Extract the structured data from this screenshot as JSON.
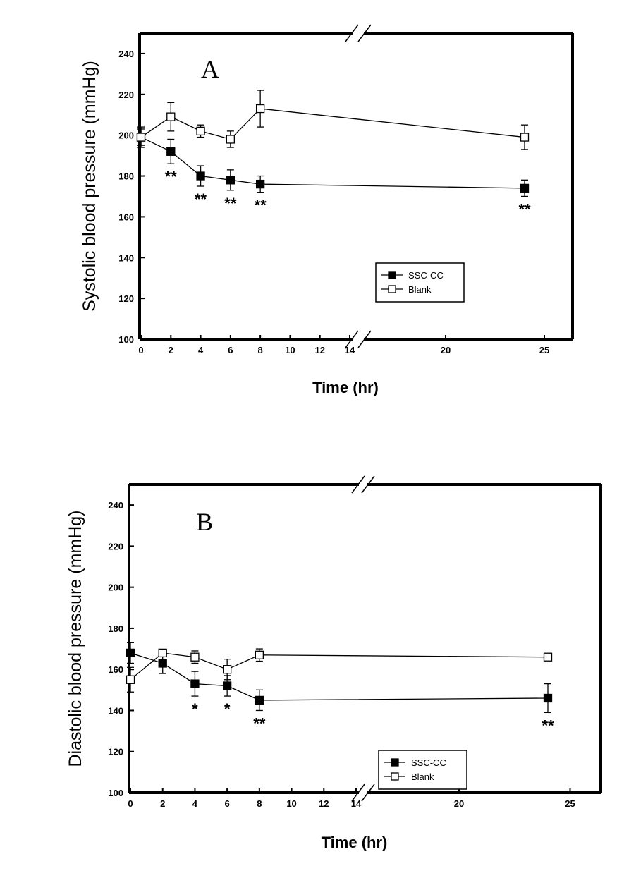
{
  "chart_data": [
    {
      "type": "line",
      "panel_label": "A",
      "xlabel": "Time (hr)",
      "ylabel": "Systolic blood pressure (mmHg)",
      "ylim": [
        100,
        250
      ],
      "yticks": [
        100,
        120,
        140,
        160,
        180,
        200,
        220,
        240
      ],
      "xticks_left": [
        0,
        2,
        4,
        6,
        8,
        10,
        12,
        14
      ],
      "xticks_right": [
        20,
        25
      ],
      "axis_break": "between 14 and ~16",
      "grid": false,
      "legend_position": "lower-right",
      "series": [
        {
          "name": "SSC-CC",
          "marker": "filled-square",
          "x": [
            0,
            2,
            4,
            6,
            8,
            24
          ],
          "y": [
            199,
            192,
            180,
            178,
            176,
            174
          ],
          "err": [
            5,
            6,
            5,
            5,
            4,
            4
          ]
        },
        {
          "name": "Blank",
          "marker": "open-square",
          "x": [
            0,
            2,
            4,
            6,
            8,
            24
          ],
          "y": [
            199,
            209,
            202,
            198,
            213,
            199
          ],
          "err": [
            4,
            7,
            3,
            4,
            9,
            6
          ]
        }
      ],
      "annotations": [
        {
          "x": 2,
          "text": "**"
        },
        {
          "x": 4,
          "text": "**"
        },
        {
          "x": 6,
          "text": "**"
        },
        {
          "x": 8,
          "text": "**"
        },
        {
          "x": 24,
          "text": "**"
        }
      ]
    },
    {
      "type": "line",
      "panel_label": "B",
      "xlabel": "Time (hr)",
      "ylabel": "Diastolic blood pressure (mmHg)",
      "ylim": [
        100,
        250
      ],
      "yticks": [
        100,
        120,
        140,
        160,
        180,
        200,
        220,
        240
      ],
      "xticks_left": [
        0,
        2,
        4,
        6,
        8,
        10,
        12,
        14
      ],
      "xticks_right": [
        20,
        25
      ],
      "axis_break": "between 14 and ~16",
      "grid": false,
      "legend_position": "lower-right",
      "series": [
        {
          "name": "SSC-CC",
          "marker": "filled-square",
          "x": [
            0,
            2,
            4,
            6,
            8,
            24
          ],
          "y": [
            168,
            163,
            153,
            152,
            145,
            146
          ],
          "err": [
            5,
            5,
            6,
            5,
            5,
            7
          ]
        },
        {
          "name": "Blank",
          "marker": "open-square",
          "x": [
            0,
            2,
            4,
            6,
            8,
            24
          ],
          "y": [
            155,
            168,
            166,
            160,
            167,
            166
          ],
          "err": [
            6,
            1,
            3,
            5,
            3,
            1
          ]
        }
      ],
      "annotations": [
        {
          "x": 4,
          "text": "*"
        },
        {
          "x": 6,
          "text": "*"
        },
        {
          "x": 8,
          "text": "**"
        },
        {
          "x": 24,
          "text": "**"
        }
      ]
    }
  ]
}
